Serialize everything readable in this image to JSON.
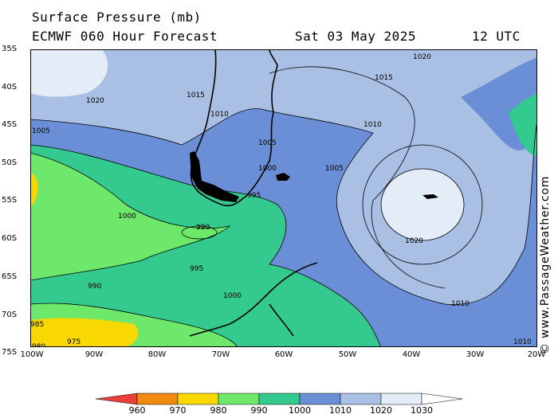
{
  "header": {
    "title": "Surface Pressure (mb)",
    "model": "ECMWF 060 Hour Forecast",
    "date": "Sat 03 May 2025",
    "time": "12 UTC"
  },
  "credit": "© www.PassageWeather.com",
  "lat_labels": [
    "35S",
    "40S",
    "45S",
    "50S",
    "55S",
    "60S",
    "65S",
    "70S",
    "75S"
  ],
  "lon_labels": [
    "100W",
    "90W",
    "80W",
    "70W",
    "60W",
    "50W",
    "40W",
    "30W",
    "20W"
  ],
  "legend": {
    "ticks": [
      "960",
      "970",
      "980",
      "990",
      "1000",
      "1010",
      "1020",
      "1030"
    ],
    "colors": [
      "#e8403a",
      "#f08a10",
      "#f8d800",
      "#6ee86a",
      "#34c98e",
      "#6a8fd6",
      "#a9c0e4",
      "#e4ecf8"
    ]
  },
  "contour_labels": [
    "1020",
    "1015",
    "1010",
    "1005",
    "1000",
    "995",
    "990",
    "985",
    "980",
    "975",
    "1010",
    "1020",
    "1005",
    "1000",
    "995",
    "990",
    "1015",
    "1010",
    "1005",
    "1000",
    "1020",
    "1010"
  ]
}
